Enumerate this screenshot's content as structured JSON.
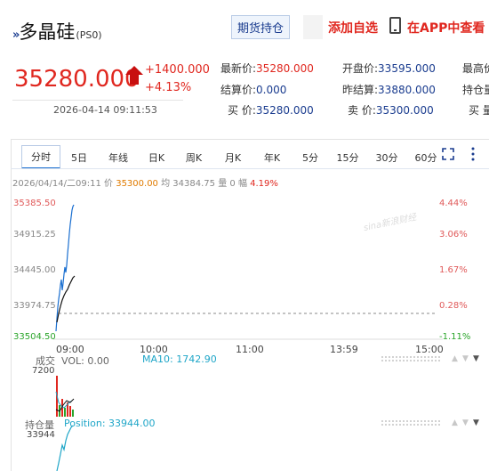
{
  "header": {
    "title": "多晶硅",
    "code": "(PS0)",
    "futures_btn": "期货持仓",
    "fav_btn": "添加自选",
    "app_btn": "在APP中查看"
  },
  "quote": {
    "price": "35280.000",
    "change": "+1400.000",
    "change_pct": "+4.13%",
    "datetime": "2026-04-14 09:11:53",
    "fields": [
      {
        "k": "最新价:",
        "v": "35280.000",
        "c": "red"
      },
      {
        "k": "开盘价:",
        "v": "33595.000",
        "c": "blue"
      },
      {
        "k": "最高价",
        "v": "",
        "c": "blue"
      },
      {
        "k": "结算价:",
        "v": "0.000",
        "c": "blue"
      },
      {
        "k": "昨结算:",
        "v": "33880.000",
        "c": "blue"
      },
      {
        "k": "持仓量",
        "v": "",
        "c": "blue"
      },
      {
        "k": "买  价:",
        "v": "35280.000",
        "c": "blue"
      },
      {
        "k": "卖  价:",
        "v": "35300.000",
        "c": "blue"
      },
      {
        "k": "买  量",
        "v": "",
        "c": "blue"
      }
    ]
  },
  "tabs": [
    "分时",
    "5日",
    "年线",
    "日K",
    "周K",
    "月K",
    "年K",
    "5分",
    "15分",
    "30分",
    "60分"
  ],
  "status": {
    "date": "2026/04/14/二09:11",
    "price_label": "价",
    "price": "35300.00",
    "avg_label": "均",
    "avg": "34384.75",
    "vol_label": "量",
    "vol": "0",
    "pct_label": "幅",
    "pct": "4.19%"
  },
  "price_axis": [
    "35385.50",
    "34915.25",
    "34445.00",
    "33974.75",
    "33504.50"
  ],
  "pct_axis": [
    "4.44%",
    "3.06%",
    "1.67%",
    "0.28%",
    "-1.11%"
  ],
  "time_axis": [
    "09:00",
    "10:00",
    "11:00",
    "13:59",
    "15:00"
  ],
  "watermark": "sina新浪财经",
  "volume": {
    "label": "成交",
    "vol_text": "VOL: 0.00",
    "ma_text": "MA10: 1742.90",
    "max": "7200"
  },
  "position": {
    "label": "持仓量",
    "value_text": "Position: 33944.00",
    "axis": "33944"
  },
  "colors": {
    "red": "#e0271f",
    "blue": "#1a3c8f",
    "price_line": "#1a6fd0",
    "avg_line": "#111111",
    "ma_line": "#1fa6c8"
  }
}
